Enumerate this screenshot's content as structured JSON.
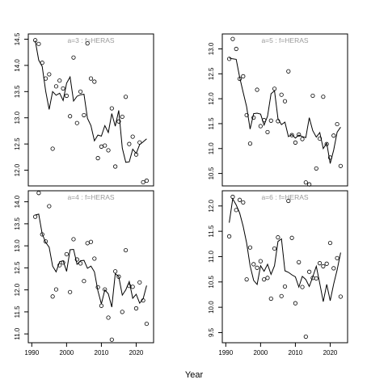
{
  "xlabel": "Year",
  "chart_data": [
    {
      "type": "scatter",
      "title": "a=3 : f=HERAS",
      "xlim": [
        1989,
        2025
      ],
      "ylim": [
        11.7,
        14.6
      ],
      "yticks": [
        12.0,
        12.5,
        13.0,
        13.5,
        14.0,
        14.5
      ],
      "xticks": [],
      "x": [
        1991,
        1992,
        1993,
        1994,
        1995,
        1996,
        1997,
        1998,
        1999,
        2000,
        2001,
        2002,
        2003,
        2004,
        2005,
        2006,
        2007,
        2008,
        2009,
        2010,
        2011,
        2012,
        2013,
        2014,
        2015,
        2016,
        2017,
        2018,
        2019,
        2020,
        2021,
        2022,
        2023
      ],
      "points": [
        14.48,
        14.41,
        14.05,
        13.75,
        13.83,
        12.41,
        13.6,
        13.71,
        13.56,
        13.42,
        13.03,
        14.15,
        12.9,
        13.5,
        13.05,
        14.42,
        13.75,
        13.69,
        12.23,
        12.45,
        12.47,
        12.38,
        13.18,
        12.07,
        12.93,
        13.02,
        13.4,
        12.5,
        12.64,
        12.3,
        12.53,
        11.77,
        11.8
      ],
      "line": [
        14.47,
        14.1,
        13.98,
        13.51,
        13.16,
        13.5,
        13.43,
        13.47,
        13.33,
        13.66,
        13.78,
        13.32,
        13.41,
        13.44,
        13.45,
        12.99,
        12.85,
        12.56,
        12.67,
        12.65,
        12.85,
        12.72,
        13.08,
        12.84,
        13.14,
        12.42,
        12.15,
        12.16,
        12.4,
        12.32,
        12.49,
        12.54,
        12.6
      ]
    },
    {
      "type": "scatter",
      "title": "a=5 : f=HERAS",
      "xlim": [
        1989,
        2025
      ],
      "ylim": [
        10.25,
        13.3
      ],
      "yticks": [
        10.5,
        11.0,
        11.5,
        12.0,
        12.5,
        13.0
      ],
      "xticks": [],
      "x": [
        1991,
        1992,
        1993,
        1994,
        1995,
        1996,
        1997,
        1998,
        1999,
        2000,
        2001,
        2002,
        2003,
        2004,
        2005,
        2006,
        2007,
        2008,
        2009,
        2010,
        2011,
        2012,
        2013,
        2014,
        2015,
        2016,
        2017,
        2018,
        2019,
        2020,
        2021,
        2022,
        2023
      ],
      "points": [
        12.8,
        13.2,
        13.0,
        12.4,
        12.45,
        11.67,
        11.1,
        11.62,
        12.18,
        11.45,
        11.57,
        11.33,
        11.56,
        12.2,
        11.55,
        12.08,
        11.95,
        12.55,
        11.27,
        11.12,
        11.28,
        11.19,
        10.32,
        10.28,
        12.06,
        10.6,
        11.2,
        12.04,
        11.09,
        10.82,
        11.26,
        11.49,
        10.65
      ],
      "line": [
        12.82,
        12.8,
        12.79,
        12.43,
        12.13,
        11.84,
        11.39,
        11.7,
        11.71,
        11.69,
        11.47,
        11.65,
        12.1,
        12.16,
        11.6,
        11.48,
        11.53,
        11.24,
        11.28,
        11.21,
        11.27,
        11.24,
        11.22,
        11.62,
        11.36,
        11.23,
        11.32,
        11.0,
        11.11,
        10.7,
        10.97,
        11.33,
        11.43
      ]
    },
    {
      "type": "scatter",
      "title": "a=4 : f=HERAS",
      "xlim": [
        1989,
        2025
      ],
      "ylim": [
        10.8,
        14.25
      ],
      "yticks": [
        11.0,
        11.5,
        12.0,
        12.5,
        13.0,
        13.5,
        14.0
      ],
      "xticks": [
        1990,
        2000,
        2010,
        2020
      ],
      "x": [
        1991,
        1992,
        1993,
        1994,
        1995,
        1996,
        1997,
        1998,
        1999,
        2000,
        2001,
        2002,
        2003,
        2004,
        2005,
        2006,
        2007,
        2008,
        2009,
        2010,
        2011,
        2012,
        2013,
        2014,
        2015,
        2016,
        2017,
        2018,
        2019,
        2020,
        2021,
        2022,
        2023
      ],
      "points": [
        13.66,
        14.2,
        13.26,
        13.1,
        13.9,
        11.85,
        12.01,
        12.56,
        12.62,
        12.81,
        11.95,
        13.15,
        12.69,
        12.6,
        12.2,
        13.06,
        13.09,
        12.71,
        12.06,
        11.64,
        12.01,
        11.37,
        10.87,
        12.42,
        12.3,
        11.5,
        12.9,
        12.09,
        12.07,
        11.58,
        12.17,
        11.76,
        11.23
      ],
      "line": [
        13.7,
        13.72,
        13.27,
        13.08,
        12.97,
        12.54,
        12.41,
        12.64,
        12.66,
        12.42,
        12.91,
        12.92,
        12.58,
        12.66,
        12.67,
        12.49,
        12.54,
        12.41,
        11.98,
        11.68,
        12.0,
        11.91,
        11.61,
        12.37,
        12.3,
        11.88,
        12.0,
        12.19,
        11.81,
        11.9,
        11.7,
        11.8,
        12.1
      ]
    },
    {
      "type": "scatter",
      "title": "a=6 : f=HERAS",
      "xlim": [
        1989,
        2025
      ],
      "ylim": [
        9.3,
        12.3
      ],
      "yticks": [
        9.5,
        10.0,
        10.5,
        11.0,
        11.5,
        12.0
      ],
      "xticks": [
        1990,
        2000,
        2010,
        2020
      ],
      "x": [
        1991,
        1992,
        1993,
        1994,
        1995,
        1996,
        1997,
        1998,
        1999,
        2000,
        2001,
        2002,
        2003,
        2004,
        2005,
        2006,
        2007,
        2008,
        2009,
        2010,
        2011,
        2012,
        2013,
        2014,
        2015,
        2016,
        2017,
        2018,
        2019,
        2020,
        2021,
        2022,
        2023
      ],
      "points": [
        11.4,
        12.18,
        11.92,
        12.12,
        12.07,
        10.55,
        11.18,
        10.85,
        10.78,
        10.91,
        10.55,
        10.58,
        10.17,
        11.16,
        11.38,
        10.22,
        10.41,
        12.1,
        11.37,
        10.08,
        10.89,
        10.4,
        9.42,
        10.7,
        10.58,
        10.57,
        10.87,
        10.81,
        10.86,
        11.27,
        10.77,
        10.97,
        10.21
      ],
      "line": [
        11.67,
        12.14,
        12.02,
        11.86,
        11.6,
        11.27,
        10.82,
        10.53,
        10.45,
        10.82,
        10.71,
        10.85,
        10.65,
        10.82,
        11.3,
        11.35,
        10.72,
        10.69,
        10.64,
        10.6,
        10.4,
        10.61,
        10.55,
        10.41,
        10.6,
        10.81,
        10.47,
        10.11,
        10.45,
        10.13,
        10.46,
        10.74,
        11.08
      ]
    }
  ]
}
